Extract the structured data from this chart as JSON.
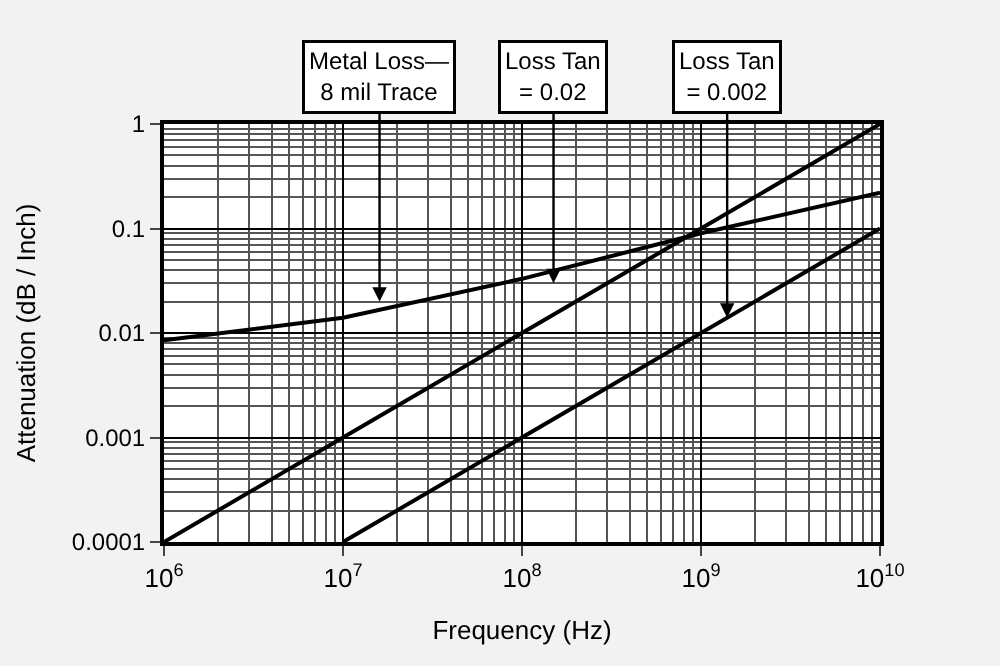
{
  "chart_data": {
    "type": "line",
    "xlabel": "Frequency (Hz)",
    "ylabel": "Attenuation (dB / Inch)",
    "x": [
      1000000,
      10000000,
      100000000,
      1000000000,
      10000000000
    ],
    "series": [
      {
        "color": "#000000",
        "values": [
          0.0085,
          0.014,
          0.033,
          0.09,
          0.22
        ]
      },
      {
        "color": "#000000",
        "values": [
          0.0001,
          0.001,
          0.01,
          0.1,
          1
        ]
      },
      {
        "color": "#000000",
        "x": [
          10000000,
          10000000000
        ],
        "values": [
          0.0001,
          0.1
        ]
      }
    ],
    "log": "xy",
    "xlim": [
      1000000,
      10000000000
    ],
    "ylim": [
      0.0001,
      1
    ],
    "xticks": [
      {
        "value": 1000000,
        "label": "10$^{6}$"
      },
      {
        "value": 10000000,
        "label": "10$^{7}$"
      },
      {
        "value": 100000000,
        "label": "10$^{8}$"
      },
      {
        "value": 1000000000,
        "label": "10$^{9}$"
      },
      {
        "value": 10000000000,
        "label": "10$^{10}$"
      }
    ],
    "yticks": [
      0.0001,
      0.001,
      0.01,
      0.1,
      1
    ],
    "grid": true,
    "marker": "none",
    "line_style": "solid",
    "annotations": [
      {
        "text": "Metal Loss—\n8 mil Trace",
        "x": 16000000,
        "y": 0.02
      },
      {
        "text": "Loss Tan\n= 0.02",
        "x": 150000000,
        "y": 0.03
      },
      {
        "text": "Loss Tan\n= 0.002",
        "x": 1400000000,
        "y": 0.014
      }
    ]
  }
}
